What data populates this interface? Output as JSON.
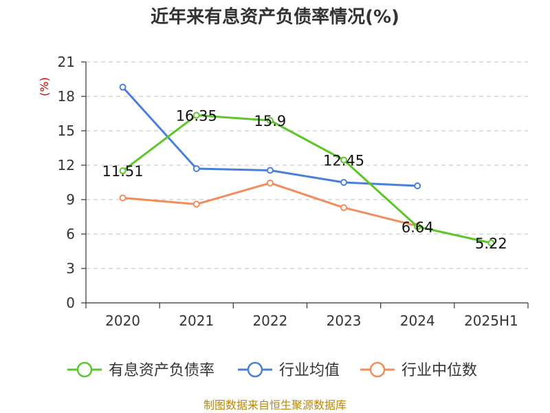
{
  "chart_data": {
    "type": "line",
    "title": "近年来有息资产负债率情况(%)",
    "ylabel": "(%)",
    "categories": [
      "2020",
      "2021",
      "2022",
      "2023",
      "2024",
      "2025H1"
    ],
    "ylim": [
      0,
      21
    ],
    "yticks": [
      0,
      3,
      6,
      9,
      12,
      15,
      18,
      21
    ],
    "grid": true,
    "legend_position": "bottom",
    "series": [
      {
        "name": "有息资产负债率",
        "color": "#5cc52a",
        "values": [
          11.51,
          16.35,
          15.9,
          12.45,
          6.64,
          5.22
        ],
        "labels": [
          "11.51",
          "16.35",
          "15.9",
          "12.45",
          "6.64",
          "5.22"
        ]
      },
      {
        "name": "行业均值",
        "color": "#4a7fd9",
        "values": [
          18.8,
          11.7,
          11.55,
          10.5,
          10.2,
          null
        ]
      },
      {
        "name": "行业中位数",
        "color": "#f28c5a",
        "values": [
          9.15,
          8.6,
          10.45,
          8.3,
          6.7,
          null
        ]
      }
    ]
  },
  "source": "制图数据来自恒生聚源数据库"
}
